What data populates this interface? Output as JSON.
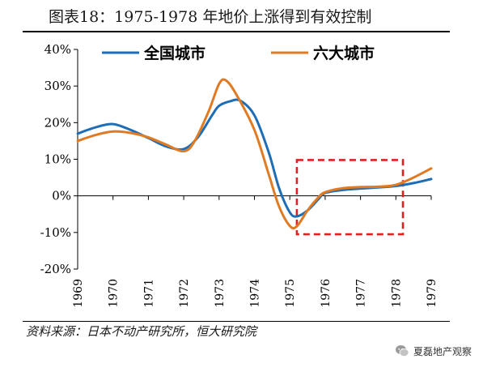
{
  "header": {
    "title": "图表18：1975-1978 年地价上涨得到有效控制"
  },
  "footer": {
    "source": "资料来源：日本不动产研究所，恒大研究院"
  },
  "watermark": {
    "text": "夏磊地产观察",
    "icon": "wechat-bubble-icon"
  },
  "chart_data": {
    "type": "line",
    "title": "",
    "xlabel": "",
    "ylabel": "",
    "x_ticks": [
      "1969",
      "1970",
      "1971",
      "1972",
      "1973",
      "1974",
      "1975",
      "1976",
      "1977",
      "1978",
      "1979"
    ],
    "y_ticks": [
      "40%",
      "30%",
      "20%",
      "10%",
      "0%",
      "-10%",
      "-20%"
    ],
    "xlim": [
      1969,
      1979
    ],
    "ylim": [
      -20,
      40
    ],
    "grid": false,
    "legend_position": "top",
    "series": [
      {
        "name": "全国城市",
        "color": "#1f6eb5",
        "points": [
          [
            1969,
            17.0
          ],
          [
            1969.5,
            18.7
          ],
          [
            1970,
            19.6
          ],
          [
            1970.5,
            18.0
          ],
          [
            1971,
            15.8
          ],
          [
            1971.5,
            13.5
          ],
          [
            1972,
            12.8
          ],
          [
            1972.4,
            16.0
          ],
          [
            1972.8,
            22.0
          ],
          [
            1973,
            24.6
          ],
          [
            1973.3,
            25.8
          ],
          [
            1973.6,
            26.0
          ],
          [
            1974,
            22.0
          ],
          [
            1974.4,
            12.0
          ],
          [
            1974.7,
            2.0
          ],
          [
            1975,
            -4.5
          ],
          [
            1975.2,
            -5.6
          ],
          [
            1975.5,
            -4.0
          ],
          [
            1975.8,
            -1.0
          ],
          [
            1976,
            0.8
          ],
          [
            1976.5,
            1.6
          ],
          [
            1977,
            2.0
          ],
          [
            1977.5,
            2.3
          ],
          [
            1978,
            2.7
          ],
          [
            1978.5,
            3.5
          ],
          [
            1979,
            4.6
          ]
        ]
      },
      {
        "name": "六大城市",
        "color": "#e07b24",
        "points": [
          [
            1969,
            15.0
          ],
          [
            1969.5,
            16.6
          ],
          [
            1970,
            17.6
          ],
          [
            1970.5,
            17.2
          ],
          [
            1971,
            16.0
          ],
          [
            1971.5,
            14.0
          ],
          [
            1972,
            12.2
          ],
          [
            1972.3,
            14.8
          ],
          [
            1972.7,
            23.0
          ],
          [
            1973,
            30.6
          ],
          [
            1973.2,
            31.5
          ],
          [
            1973.5,
            27.5
          ],
          [
            1974,
            18.0
          ],
          [
            1974.4,
            6.0
          ],
          [
            1974.7,
            -3.0
          ],
          [
            1975,
            -8.2
          ],
          [
            1975.2,
            -8.3
          ],
          [
            1975.5,
            -4.0
          ],
          [
            1975.8,
            -0.5
          ],
          [
            1976,
            1.0
          ],
          [
            1976.5,
            2.1
          ],
          [
            1977,
            2.4
          ],
          [
            1977.5,
            2.5
          ],
          [
            1978,
            3.0
          ],
          [
            1978.5,
            5.0
          ],
          [
            1979,
            7.5
          ]
        ]
      }
    ],
    "annotation": {
      "type": "dashed-rectangle",
      "color": "#e02020",
      "x_range": [
        1975.2,
        1978.2
      ],
      "y_range": [
        -10.5,
        9.8
      ]
    }
  }
}
